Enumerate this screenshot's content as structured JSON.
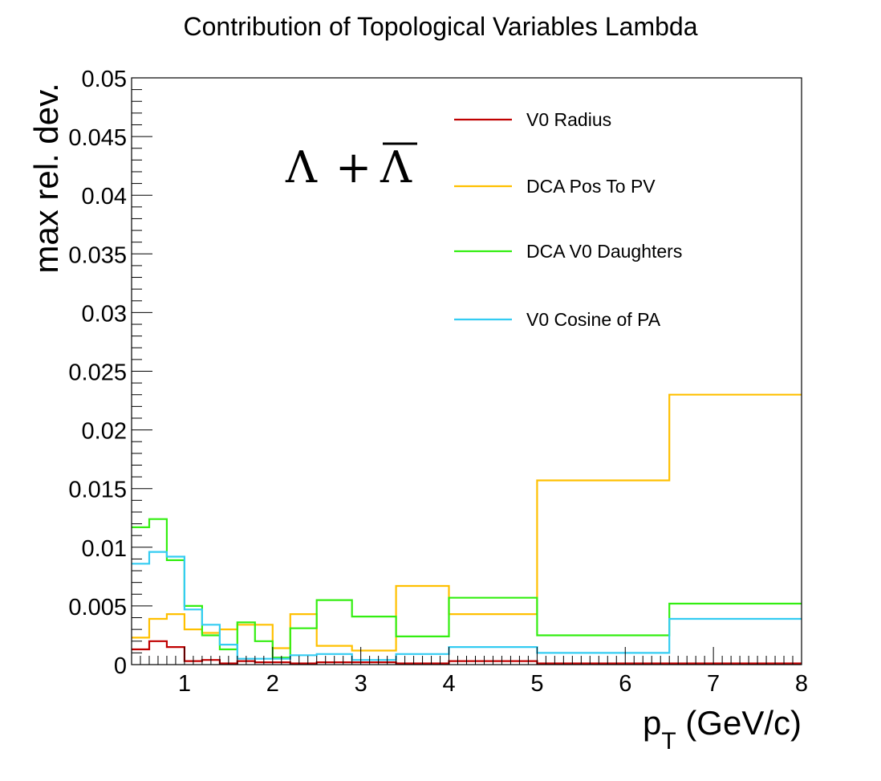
{
  "chart_data": {
    "type": "line",
    "title": "Contribution of Topological Variables Lambda",
    "xlabel_main": "p",
    "xlabel_sub": "T",
    "xlabel_units": " (GeV/c)",
    "ylabel": "max rel. dev.",
    "xlim": [
      0.4,
      8
    ],
    "ylim": [
      0,
      0.05
    ],
    "x_ticks": [
      1,
      2,
      3,
      4,
      5,
      6,
      7,
      8
    ],
    "x_tick_labels": [
      "1",
      "2",
      "3",
      "4",
      "5",
      "6",
      "7",
      "8"
    ],
    "y_ticks": [
      0,
      0.005,
      0.01,
      0.015,
      0.02,
      0.025,
      0.03,
      0.035,
      0.04,
      0.045,
      0.05
    ],
    "y_tick_labels": [
      "0",
      "0.005",
      "0.01",
      "0.015",
      "0.02",
      "0.025",
      "0.03",
      "0.035",
      "0.04",
      "0.045",
      "0.05"
    ],
    "annotation": {
      "left": "Λ",
      "plus": "+",
      "right": "Λ"
    },
    "legend_position": "top-right",
    "bin_edges": [
      0.4,
      0.6,
      0.8,
      1.0,
      1.2,
      1.4,
      1.6,
      1.8,
      2.0,
      2.2,
      2.5,
      2.9,
      3.4,
      4.0,
      5.0,
      6.5,
      8.0
    ],
    "series": [
      {
        "name": "V0 Radius",
        "color": "#c00000",
        "values": [
          0.0013,
          0.002,
          0.0015,
          0.0003,
          0.0004,
          0.0001,
          0.0003,
          0.0002,
          0.0002,
          0.0001,
          0.0002,
          0.0002,
          0.0001,
          0.0003,
          0.0001,
          0.0001
        ]
      },
      {
        "name": "DCA Pos To PV",
        "color": "#ffc000",
        "values": [
          0.0023,
          0.0039,
          0.0043,
          0.003,
          0.0027,
          0.003,
          0.0034,
          0.0034,
          0.0014,
          0.0043,
          0.0016,
          0.0012,
          0.0067,
          0.0043,
          0.0157,
          0.023
        ]
      },
      {
        "name": "DCA V0 Daughters",
        "color": "#33ee11",
        "values": [
          0.0117,
          0.0124,
          0.0089,
          0.005,
          0.0025,
          0.0013,
          0.0036,
          0.002,
          0.0006,
          0.0031,
          0.0055,
          0.0041,
          0.0024,
          0.0057,
          0.0025,
          0.0052
        ]
      },
      {
        "name": "V0 Cosine of PA",
        "color": "#33ccf2",
        "values": [
          0.0086,
          0.0096,
          0.0092,
          0.0047,
          0.0034,
          0.0017,
          0.0005,
          0.0005,
          0.0005,
          0.0008,
          0.0009,
          0.0004,
          0.0009,
          0.0015,
          0.001,
          0.0039
        ]
      }
    ]
  }
}
